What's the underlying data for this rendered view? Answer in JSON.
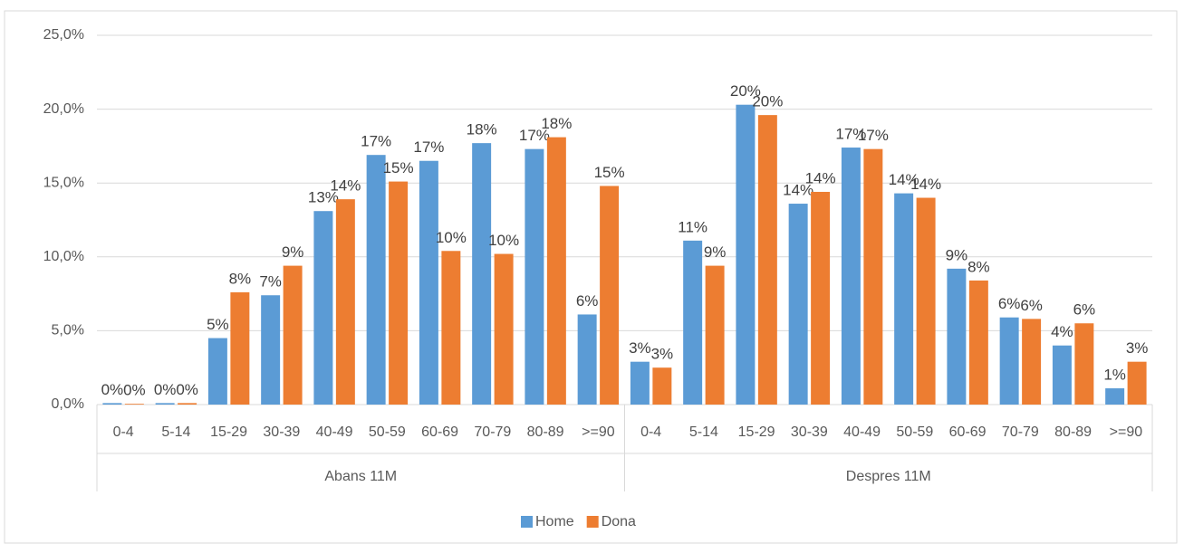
{
  "chart_data": {
    "type": "bar",
    "groups": [
      "Abans 11M",
      "Despres 11M"
    ],
    "categories": [
      "0-4",
      "5-14",
      "15-29",
      "30-39",
      "40-49",
      "50-59",
      "60-69",
      "70-79",
      "80-89",
      ">=90",
      "0-4",
      "5-14",
      "15-29",
      "30-39",
      "40-49",
      "50-59",
      "60-69",
      "70-79",
      "80-89",
      ">=90"
    ],
    "series": [
      {
        "name": "Home",
        "color": "#5b9bd5",
        "values": [
          0.1,
          0.1,
          4.5,
          7.4,
          13.1,
          16.9,
          16.5,
          17.7,
          17.3,
          6.1,
          2.9,
          11.1,
          20.3,
          13.6,
          17.4,
          14.3,
          9.2,
          5.9,
          4.0,
          1.1
        ],
        "value_labels": [
          "0%",
          "0%",
          "5%",
          "7%",
          "13%",
          "17%",
          "17%",
          "18%",
          "17%",
          "6%",
          "3%",
          "11%",
          "20%",
          "14%",
          "17%",
          "14%",
          "9%",
          "6%",
          "4%",
          "1%"
        ]
      },
      {
        "name": "Dona",
        "color": "#ed7d31",
        "values": [
          0.05,
          0.1,
          7.6,
          9.4,
          13.9,
          15.1,
          10.4,
          10.2,
          18.1,
          14.8,
          2.5,
          9.4,
          19.6,
          14.4,
          17.3,
          14.0,
          8.4,
          5.8,
          5.5,
          2.9
        ],
        "value_labels": [
          "0%",
          "0%",
          "8%",
          "9%",
          "14%",
          "15%",
          "10%",
          "10%",
          "18%",
          "15%",
          "3%",
          "9%",
          "20%",
          "14%",
          "17%",
          "14%",
          "8%",
          "6%",
          "6%",
          "3%"
        ]
      }
    ],
    "ylim": [
      0,
      25
    ],
    "yticks": [
      {
        "value": 0,
        "label": "0,0%"
      },
      {
        "value": 5,
        "label": "5,0%"
      },
      {
        "value": 10,
        "label": "10,0%"
      },
      {
        "value": 15,
        "label": "15,0%"
      },
      {
        "value": 20,
        "label": "20,0%"
      },
      {
        "value": 25,
        "label": "25,0%"
      }
    ],
    "grid": true,
    "legend": "bottom"
  }
}
